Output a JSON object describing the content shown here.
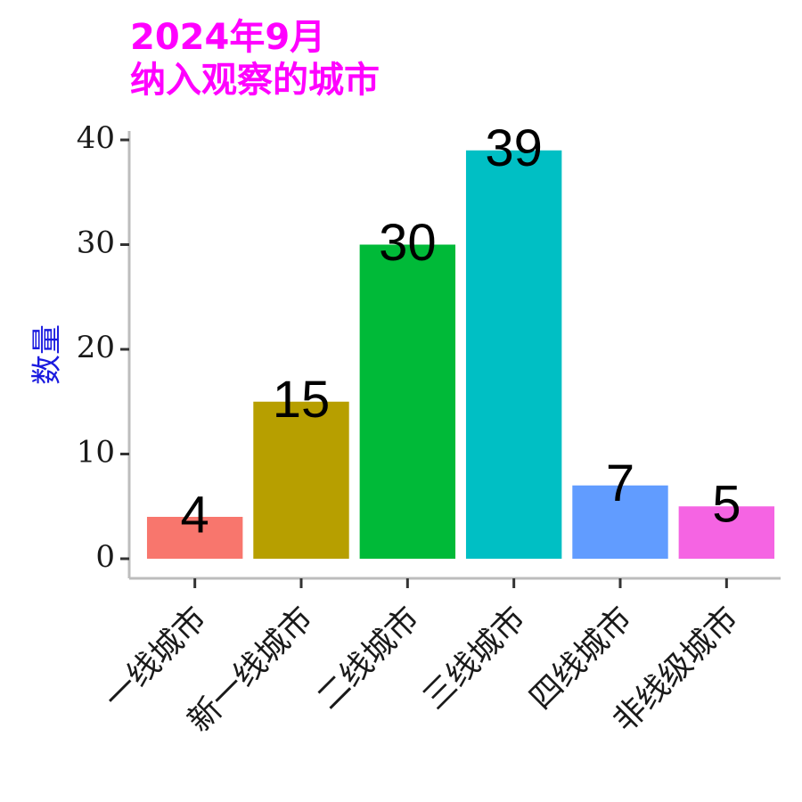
{
  "chart_data": {
    "type": "bar",
    "title": [
      "2024年9月",
      "纳入观察的城市"
    ],
    "xlabel": "",
    "ylabel": "数量",
    "categories": [
      "一线城市",
      "新一线城市",
      "二线城市",
      "三线城市",
      "四线城市",
      "非线级城市"
    ],
    "values": [
      4,
      15,
      30,
      39,
      7,
      5
    ],
    "colors": [
      "#F8766D",
      "#B79F00",
      "#00BA38",
      "#00BFC4",
      "#619CFF",
      "#F564E3"
    ],
    "ylim": [
      0,
      40
    ],
    "yticks": [
      "0",
      "10",
      "20",
      "30",
      "40"
    ],
    "grid": false,
    "legend": "none",
    "title_color": "#ff00ff",
    "ylabel_color": "#1a1adf"
  }
}
